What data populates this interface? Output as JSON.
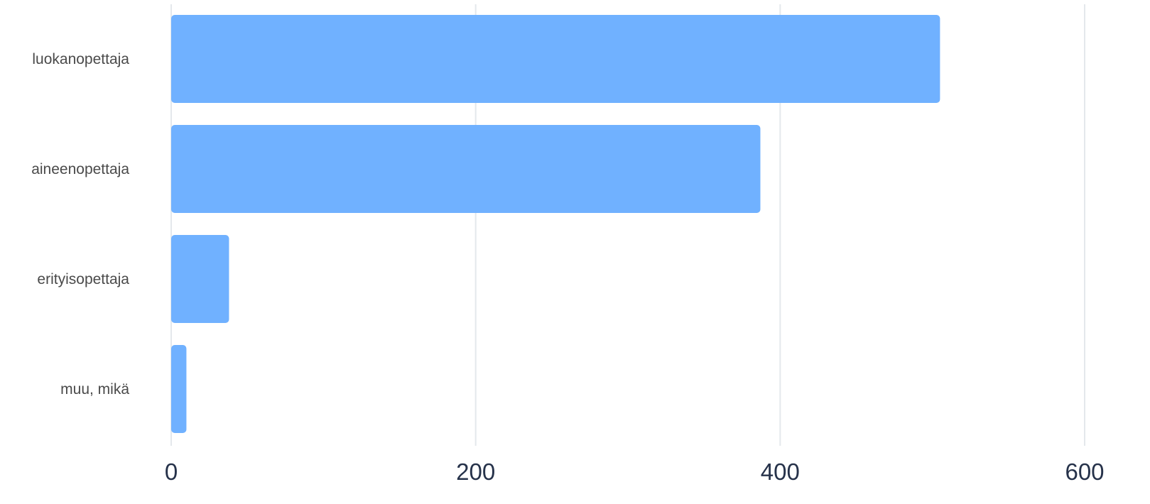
{
  "chart_data": {
    "type": "bar",
    "orientation": "horizontal",
    "categories": [
      "luokanopettaja",
      "aineenopettaja",
      "erityisopettaja",
      "muu, mikä"
    ],
    "values": [
      505,
      387,
      38,
      10
    ],
    "xlim": [
      0,
      600
    ],
    "x_ticks": [
      "0",
      "200",
      "400",
      "600"
    ],
    "grid": "vertical",
    "colors": {
      "bar": "#70b1ff",
      "grid": "#e4e8ec",
      "category_text": "#4a4a4a",
      "tick_text": "#26324a"
    }
  }
}
